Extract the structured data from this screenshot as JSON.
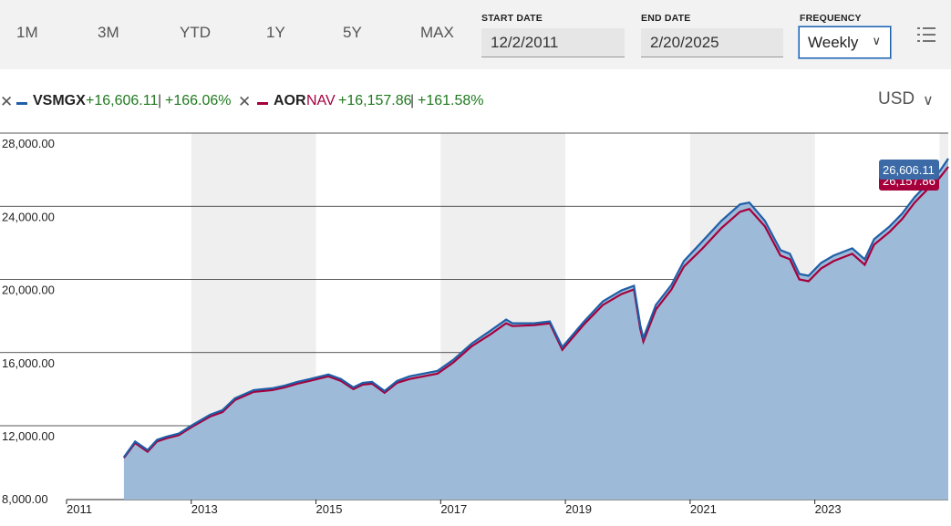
{
  "toolbar": {
    "ranges": [
      "1M",
      "3M",
      "YTD",
      "1Y",
      "5Y",
      "MAX"
    ],
    "start_date_label": "START DATE",
    "start_date_value": "12/2/2011",
    "end_date_label": "END DATE",
    "end_date_value": "2/20/2025",
    "frequency_label": "FREQUENCY",
    "frequency_value": "Weekly"
  },
  "legend": {
    "series1": {
      "ticker": "VSMGX",
      "abs_change": "+16,606.11",
      "sep": "|",
      "pct_change": "+166.06%",
      "color": "#1f5fa8"
    },
    "series2": {
      "ticker": "AOR",
      "type_label": "NAV",
      "abs_change": "+16,157.86",
      "sep": "|",
      "pct_change": "+161.58%",
      "color": "#a6003c"
    }
  },
  "currency": "USD",
  "last_value_label": "26,606.11",
  "hidden_label": "26,157.86",
  "colors": {
    "area": "#9dbad8",
    "area_shaded": "#90aed0",
    "band": "#efefef",
    "gain": "#1f7a1f"
  },
  "chart_data": {
    "type": "line",
    "y_ticks": [
      "28,000.00",
      "24,000.00",
      "20,000.00",
      "16,000.00",
      "12,000.00",
      "8,000.00"
    ],
    "x_ticks": [
      "2011",
      "2013",
      "2015",
      "2017",
      "2019",
      "2021",
      "2023"
    ],
    "ylim": [
      8000,
      28000
    ],
    "x": [
      2011.92,
      2012.1,
      2012.3,
      2012.45,
      2012.6,
      2012.8,
      2013.0,
      2013.3,
      2013.5,
      2013.7,
      2014.0,
      2014.3,
      2014.5,
      2014.7,
      2014.9,
      2015.2,
      2015.4,
      2015.6,
      2015.75,
      2015.9,
      2016.1,
      2016.3,
      2016.5,
      2016.8,
      2016.95,
      2017.2,
      2017.5,
      2017.8,
      2018.05,
      2018.15,
      2018.5,
      2018.75,
      2018.95,
      2019.0,
      2019.3,
      2019.6,
      2019.9,
      2020.1,
      2020.2,
      2020.25,
      2020.45,
      2020.7,
      2020.9,
      2021.2,
      2021.5,
      2021.8,
      2021.95,
      2022.2,
      2022.45,
      2022.6,
      2022.75,
      2022.9,
      2023.1,
      2023.3,
      2023.6,
      2023.8,
      2023.95,
      2024.2,
      2024.4,
      2024.6,
      2024.8,
      2025.0,
      2025.14
    ],
    "series": [
      {
        "name": "VSMGX",
        "values": [
          10000,
          11000,
          10450,
          11100,
          11300,
          11500,
          12000,
          12600,
          12850,
          13500,
          13950,
          14050,
          14200,
          14400,
          14550,
          14800,
          14550,
          14100,
          14350,
          14400,
          13900,
          14450,
          14700,
          14900,
          15000,
          15600,
          16500,
          17200,
          17800,
          17600,
          17600,
          17700,
          16300,
          16500,
          17700,
          18800,
          19400,
          19650,
          17500,
          16800,
          18600,
          19700,
          21000,
          22100,
          23200,
          24100,
          24200,
          23200,
          21600,
          21400,
          20300,
          20200,
          20900,
          21300,
          21700,
          21100,
          22200,
          22900,
          23600,
          24500,
          25200,
          25900,
          26606
        ]
      },
      {
        "name": "AOR",
        "values": [
          9950,
          10900,
          10350,
          11000,
          11200,
          11400,
          11900,
          12500,
          12750,
          13400,
          13850,
          13950,
          14100,
          14300,
          14450,
          14700,
          14450,
          14000,
          14250,
          14300,
          13800,
          14350,
          14550,
          14750,
          14850,
          15450,
          16350,
          17000,
          17600,
          17450,
          17500,
          17600,
          16150,
          16350,
          17550,
          18600,
          19200,
          19450,
          17300,
          16600,
          18350,
          19450,
          20700,
          21700,
          22800,
          23700,
          23850,
          22900,
          21300,
          21100,
          20000,
          19900,
          20600,
          21000,
          21400,
          20800,
          21900,
          22600,
          23300,
          24200,
          24900,
          25550,
          26158
        ]
      }
    ]
  }
}
